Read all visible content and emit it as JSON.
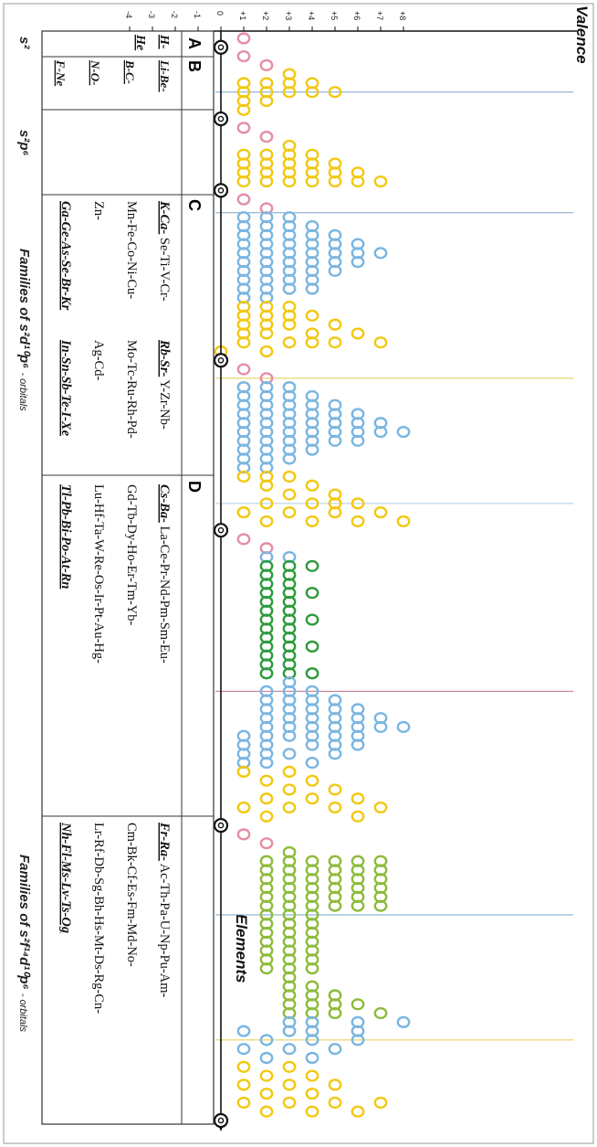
{
  "chart_data": {
    "type": "scatter",
    "title": "",
    "xlabel": "Elements",
    "ylabel": "Valence",
    "ylim": [
      -4,
      8
    ],
    "y_ticks": [
      "+8",
      "+7",
      "+6",
      "+5",
      "+4",
      "+3",
      "+2",
      "+1",
      "0",
      "-1",
      "-2",
      "-3",
      "-4"
    ],
    "colors": {
      "s_block": "#f2c811",
      "d_block": "#7ab6e0",
      "f_block_ln": "#2e9a3c",
      "f_block_an": "#8dbb3a",
      "alkali": "#e48fa4",
      "axis": "#111111"
    },
    "groups": [
      {
        "letter": "A",
        "families": [
          "H-",
          "He"
        ],
        "orbitals": "s²"
      },
      {
        "letter": "B",
        "families": [
          "Li-Be-",
          "B-C-",
          "N-O-",
          "F-Ne"
        ],
        "orbitals": "s²p⁶"
      },
      {
        "letter": "C",
        "families_underlined": [
          "K-Ca-",
          "Rb-Sr-"
        ],
        "row1": [
          "K-Ca-",
          "Se-Ti-V-Cr-",
          "Mn-Fe-Co-Ni-Cu-",
          "Zn-",
          "Ga-Ge-As-Se-Br-Kr"
        ],
        "row2": [
          "Rb-Sr-",
          "Y-Zr-Nb-",
          "Mo-Tc-Ru-Rh-Pd-",
          "Ag-Cd-",
          "In-Sn-Sb-Te-I-Xe"
        ],
        "orbitals_prefix": "Families of",
        "orbitals": "s²d¹⁰p⁶ - orbitals"
      },
      {
        "letter": "D",
        "row1": [
          "Cs-Ba-",
          "La-Ce-Pr-Nd-Pm-Sm-Eu-",
          "Gd-Tb-Dy-Ho-Er-Tm-Yb-",
          "Lu-Hf-Ta-W-Re-Os-Ir-Pt-Au-Hg-",
          "Tl-Pb-Bi-Po-At-Rn"
        ],
        "row2": [
          "Fr-Ra-",
          "Ac-Th-Pa-U-Np-Pu-Am-",
          "Cm-Bk-Cf-Es-Fm-Md-No-",
          "Lr-Rf-Db-Sg-Bh-Hs-Mt-Ds-Rg-Cn-",
          "Nh-Fl-Ms-Lv-Ts-Og"
        ],
        "orbitals_prefix": "Families of",
        "orbitals": "s²f¹⁴d¹⁰p⁶ - orbitals"
      }
    ],
    "labels_A": [
      "H-",
      "He"
    ],
    "labels_B": [
      "Li-Be-",
      "B-C-",
      "N-O-",
      "F-Ne"
    ],
    "orb_A": "s²",
    "orb_B": "s²p⁶",
    "orb_C": "s²d¹⁰p⁶",
    "orb_D": "s²f¹⁴d¹⁰p⁶",
    "orb_prefix": "Families of",
    "orb_suffix": "- orbitals",
    "noble_gas_markers": [
      "He",
      "Ne",
      "Ar",
      "Kr",
      "Xe",
      "Rn",
      "Og"
    ],
    "series": [
      {
        "segment": "period1",
        "columns": [
          {
            "valences": [
              1,
              -1
            ],
            "color": "alkali"
          },
          {
            "valences": [
              0
            ],
            "color": "axis"
          }
        ]
      },
      {
        "segment": "period2",
        "columns": [
          {
            "valences": [
              1
            ],
            "color": "alkali"
          },
          {
            "valences": [
              2
            ],
            "color": "alkali"
          },
          {
            "valences": [
              3
            ],
            "color": "s_block"
          },
          {
            "valences": [
              4,
              2,
              -4
            ],
            "color": "s_block"
          },
          {
            "valences": [
              5,
              4,
              3,
              2,
              1,
              -3
            ],
            "color": "s_block"
          },
          {
            "valences": [
              2,
              1,
              -1,
              -2
            ],
            "color": "s_block"
          },
          {
            "valences": [
              -1
            ],
            "color": "s_block"
          },
          {
            "valences": [
              0
            ],
            "color": "axis"
          }
        ]
      }
    ]
  },
  "table": {
    "A": {
      "letter": "A",
      "items": [
        "H-",
        "He"
      ]
    },
    "B": {
      "letter": "B",
      "items": [
        "Li-Be-",
        "B-C-",
        "N-O-",
        "F-Ne"
      ]
    },
    "C": {
      "letter": "C",
      "col1": [
        "K-Ca-",
        "Se-Ti-V-Cr-",
        "Mn-Fe-Co-Ni-Cu-",
        "Zn-",
        "Ga-Ge-As-Se-Br-Kr"
      ],
      "col2": [
        "Rb-Sr-",
        "Y-Zr-Nb-",
        "Mo-Tc-Ru-Rh-Pd-",
        "Ag-Cd-",
        "In-Sn-Sb-Te-I-Xe"
      ]
    },
    "D": {
      "letter": "D",
      "col1": [
        "Cs-Ba-",
        "La-Ce-Pr-Nd-Pm-Sm-Eu-",
        "Gd-Tb-Dy-Ho-Er-Tm-Yb-",
        "Lu-Hf-Ta-W-Re-Os-Ir-Pt-Au-Hg-",
        "Tl-Pb-Bi-Po-At-Rn"
      ],
      "col2": [
        "Fr-Ra-",
        "Ac-Th-Pa-U-Np-Pu-Am-",
        "Cm-Bk-Cf-Es-Fm-Md-No-",
        "Lr-Rf-Db-Sg-Bh-Hs-Mt-Ds-Rg-Cn-",
        "Nh-Fl-Ms-Lv-Ts-Og"
      ]
    }
  }
}
